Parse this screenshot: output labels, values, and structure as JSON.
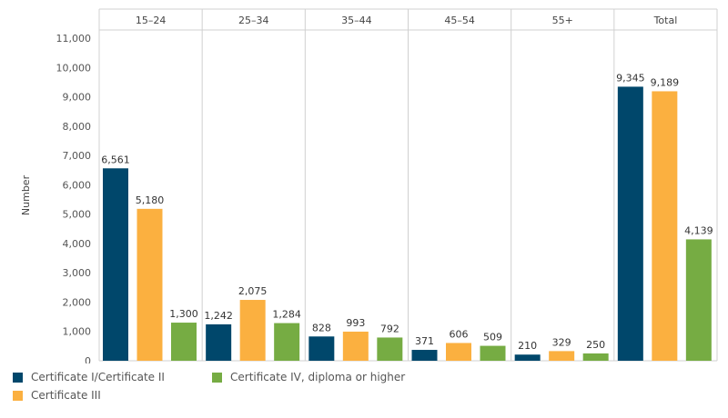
{
  "chart_data": {
    "type": "bar",
    "title": "",
    "xlabel": "",
    "ylabel": "Number",
    "ylim": [
      0,
      11000
    ],
    "y_ticks": [
      "0",
      "1,000",
      "2,000",
      "3,000",
      "4,000",
      "5,000",
      "6,000",
      "7,000",
      "8,000",
      "9,000",
      "10,000",
      "11,000"
    ],
    "y_tick_values": [
      0,
      1000,
      2000,
      3000,
      4000,
      5000,
      6000,
      7000,
      8000,
      9000,
      10000,
      11000
    ],
    "categories": [
      "15–24",
      "25–34",
      "35–44",
      "45–54",
      "55+",
      "Total"
    ],
    "series": [
      {
        "name": "Certificate I/Certificate II",
        "color": "#00476b",
        "values": [
          6561,
          1242,
          828,
          371,
          210,
          9345
        ],
        "labels": [
          "6,561",
          "1,242",
          "828",
          "371",
          "210",
          "9,345"
        ]
      },
      {
        "name": "Certificate III",
        "color": "#fbb040",
        "values": [
          5180,
          2075,
          993,
          606,
          329,
          9189
        ],
        "labels": [
          "5,180",
          "2,075",
          "993",
          "606",
          "329",
          "9,189"
        ]
      },
      {
        "name": "Certificate IV, diploma or higher",
        "color": "#76ac43",
        "values": [
          1300,
          1284,
          792,
          509,
          250,
          4139
        ],
        "labels": [
          "1,300",
          "1,284",
          "792",
          "509",
          "250",
          "4,139"
        ]
      }
    ],
    "grid": false,
    "legend_position": "bottom-left"
  }
}
